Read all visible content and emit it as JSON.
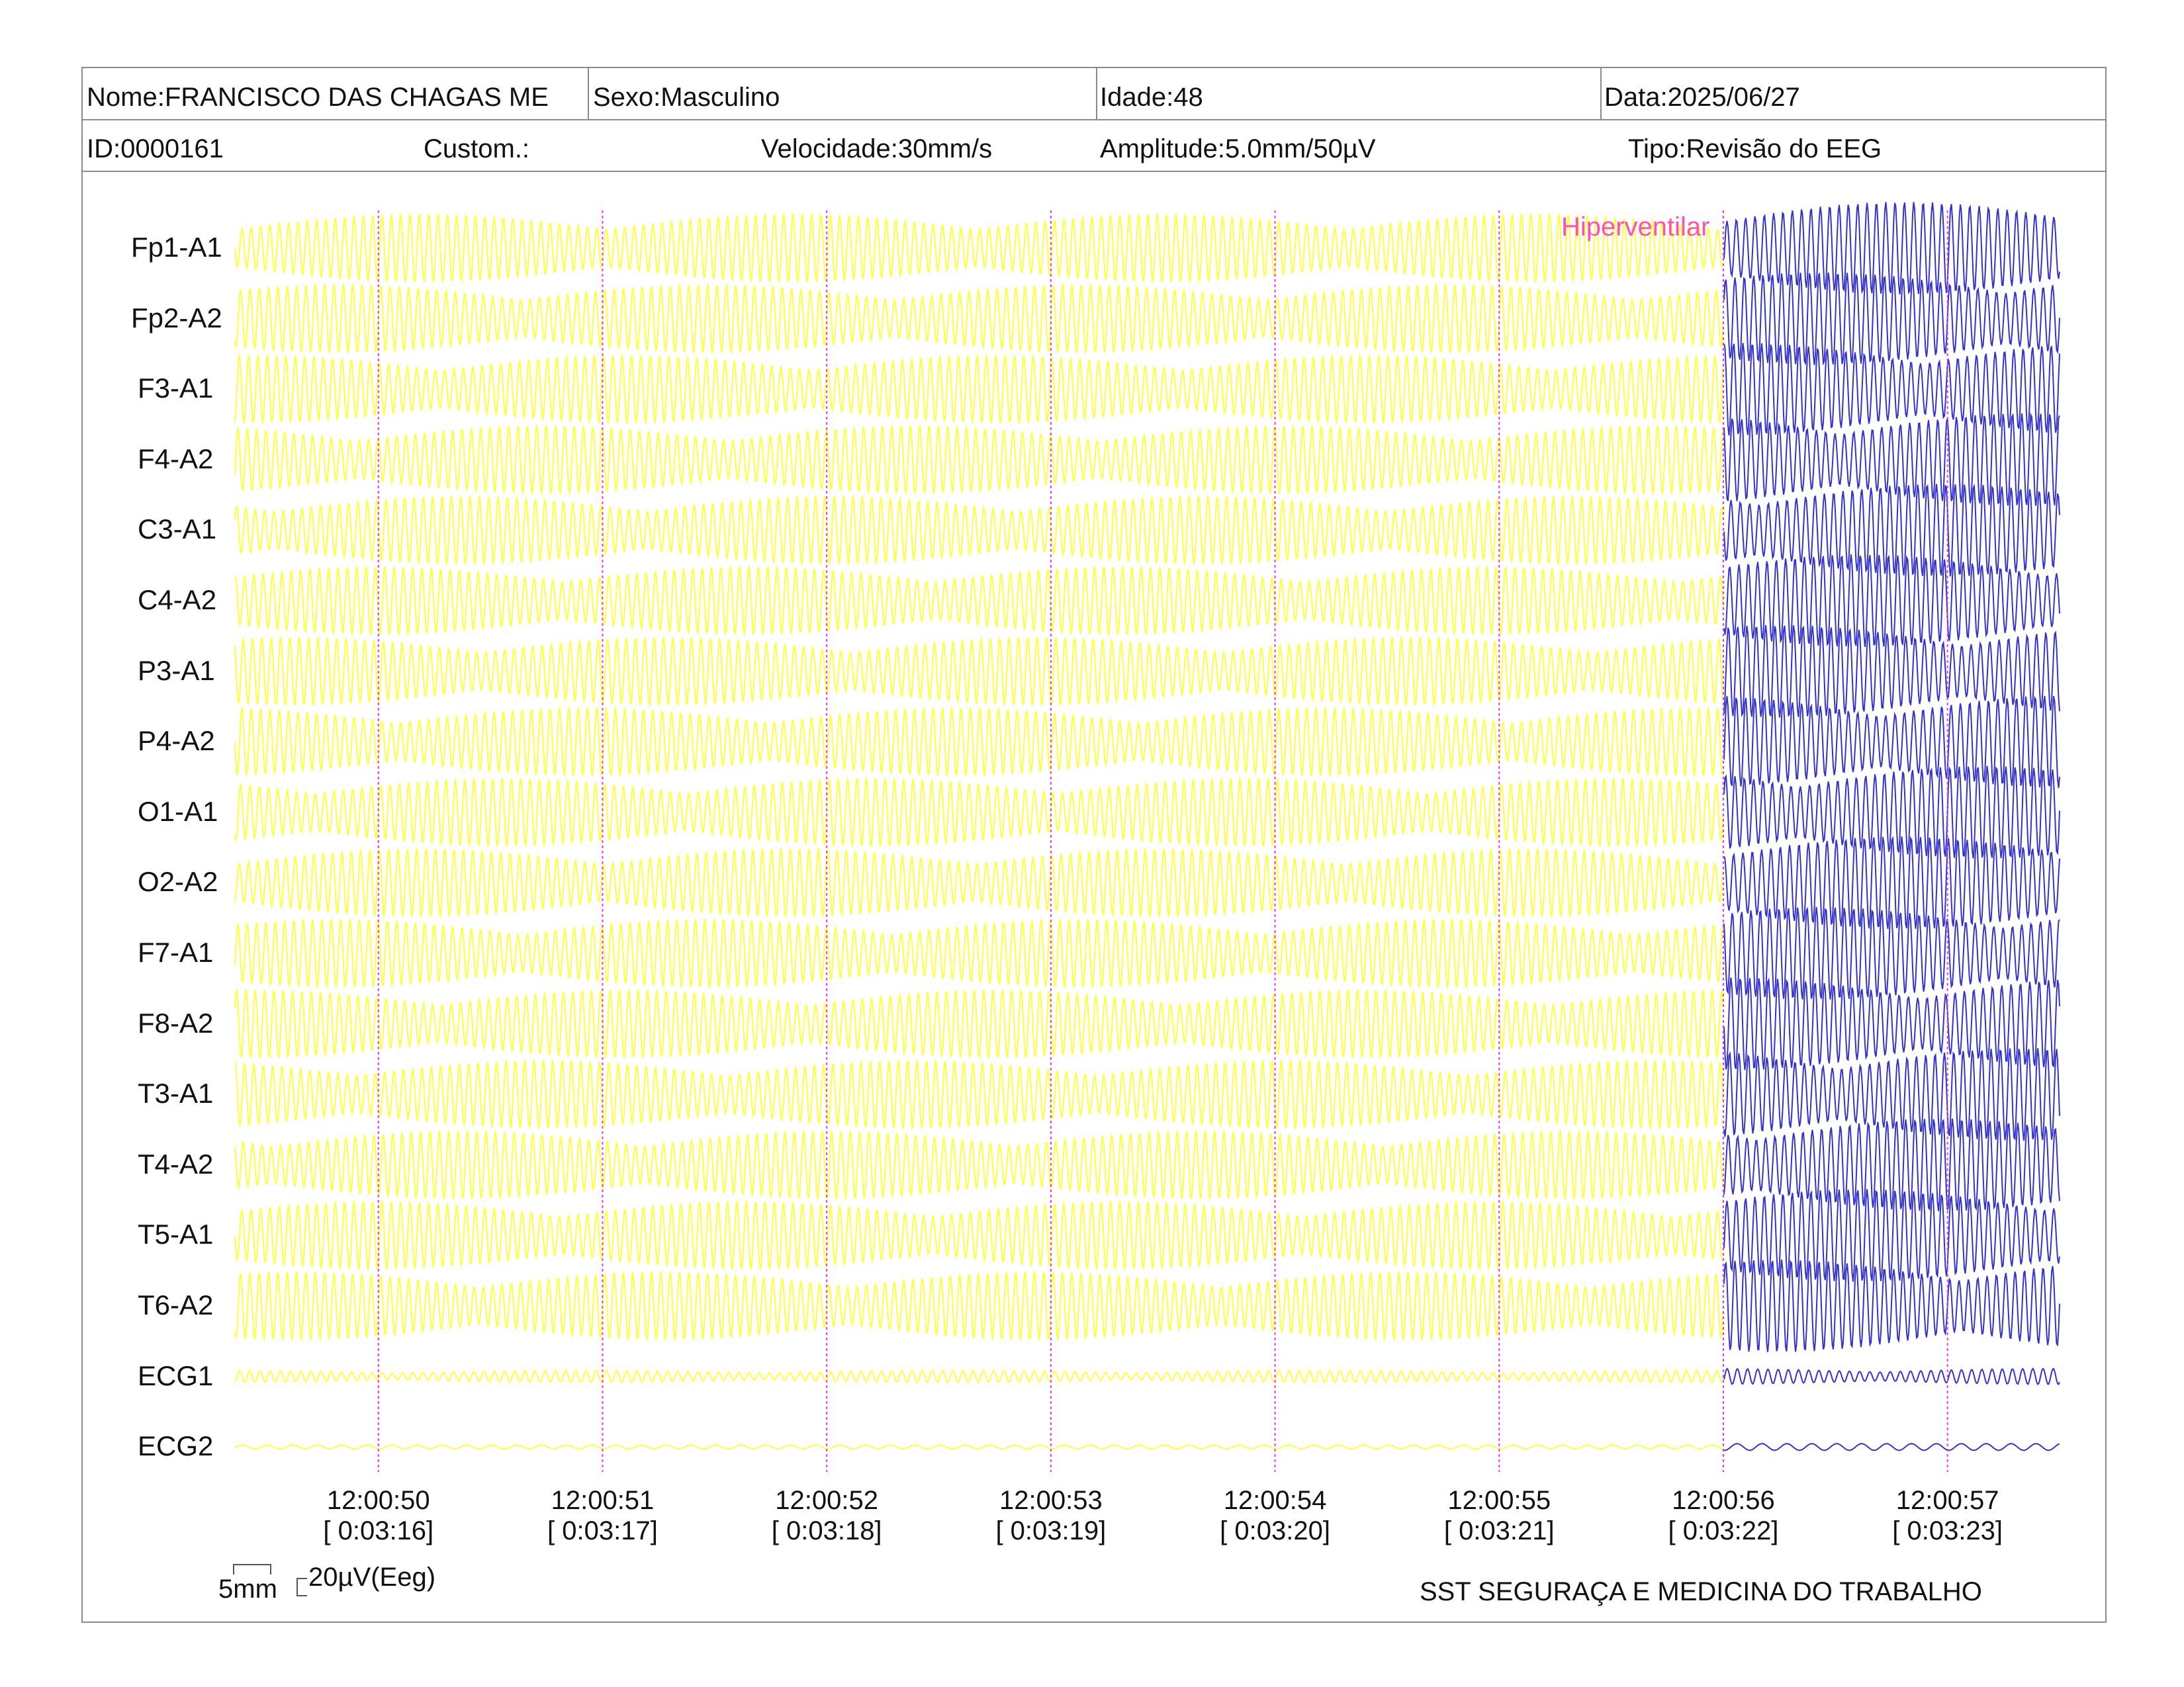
{
  "header": {
    "nome": "Nome:FRANCISCO DAS CHAGAS ME",
    "sexo": "Sexo:Masculino",
    "idade": "Idade:48",
    "data": "Data:2025/06/27",
    "id": "ID:0000161",
    "custom": "Custom.:",
    "velocidade": "Velocidade:30mm/s",
    "amplitude": "Amplitude:5.0mm/50µV",
    "tipo": "Tipo:Revisão do EEG"
  },
  "colors": {
    "eeg_normal": "#ffff3c",
    "eeg_event": "#3333cc",
    "time_marker": "#e040e0",
    "event_label": "#ff4fb8",
    "border": "#8a8a8a"
  },
  "chart_data": {
    "type": "line",
    "channels": [
      "Fp1-A1",
      "Fp2-A2",
      "F3-A1",
      "F4-A2",
      "C3-A1",
      "C4-A2",
      "P3-A1",
      "P4-A2",
      "O1-A1",
      "O2-A2",
      "F7-A1",
      "F8-A2",
      "T3-A1",
      "T4-A2",
      "T5-A1",
      "T6-A2",
      "ECG1",
      "ECG2"
    ],
    "time_ticks": [
      {
        "clock": "12:00:50",
        "elapsed": "[ 0:03:16]"
      },
      {
        "clock": "12:00:51",
        "elapsed": "[ 0:03:17]"
      },
      {
        "clock": "12:00:52",
        "elapsed": "[ 0:03:18]"
      },
      {
        "clock": "12:00:53",
        "elapsed": "[ 0:03:19]"
      },
      {
        "clock": "12:00:54",
        "elapsed": "[ 0:03:20]"
      },
      {
        "clock": "12:00:55",
        "elapsed": "[ 0:03:21]"
      },
      {
        "clock": "12:00:56",
        "elapsed": "[ 0:03:22]"
      },
      {
        "clock": "12:00:57",
        "elapsed": "[ 0:03:23]"
      }
    ],
    "event": {
      "label": "Hiperventilar",
      "time": "12:00:56"
    },
    "x_range_seconds": [
      -0.64,
      7.5
    ],
    "grid": false
  },
  "scale": {
    "time_bar": "5mm",
    "amplitude_bar": "20µV(Eeg)"
  },
  "footer": {
    "company": "SST SEGURAÇA E MEDICINA DO TRABALHO"
  }
}
